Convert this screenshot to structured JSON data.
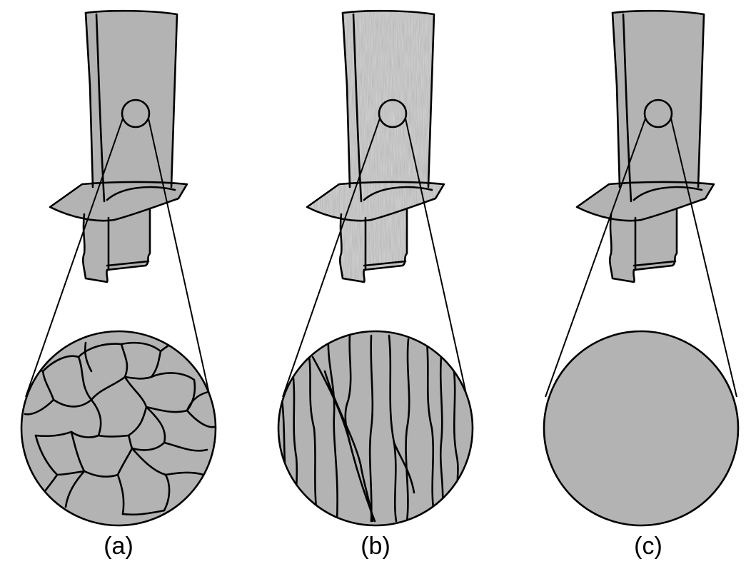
{
  "panels": [
    {
      "label": "(a)",
      "microstructure": "equiaxed-grains"
    },
    {
      "label": "(b)",
      "microstructure": "columnar-grains"
    },
    {
      "label": "(c)",
      "microstructure": "single-crystal"
    }
  ],
  "colors": {
    "metal": "#b3b3b3",
    "stroke": "#000000",
    "background": "#ffffff"
  }
}
